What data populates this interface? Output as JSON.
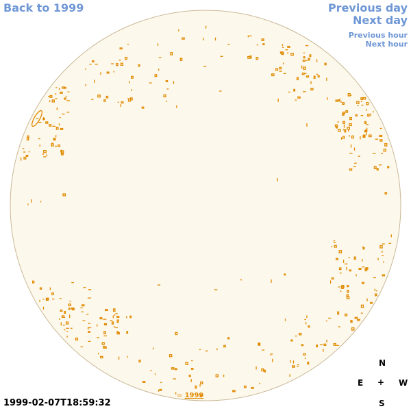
{
  "nav": {
    "back_label": "Back to 1999",
    "prev_day_label": "Previous day",
    "next_day_label": "Next day",
    "prev_hour_label": "Previous hour",
    "next_hour_label": "Next hour"
  },
  "timestamp": "1999-02-07T18:59:32",
  "compass": {
    "north": "N",
    "south": "S",
    "east": "E",
    "west": "W",
    "center": "+"
  },
  "legend": {
    "prefix": "= ",
    "year": "1999"
  },
  "colors": {
    "disk_fill": "#fdf8ec",
    "disk_stroke": "#c9b896",
    "feature": "#e08a00",
    "link": "#6f97d6"
  }
}
